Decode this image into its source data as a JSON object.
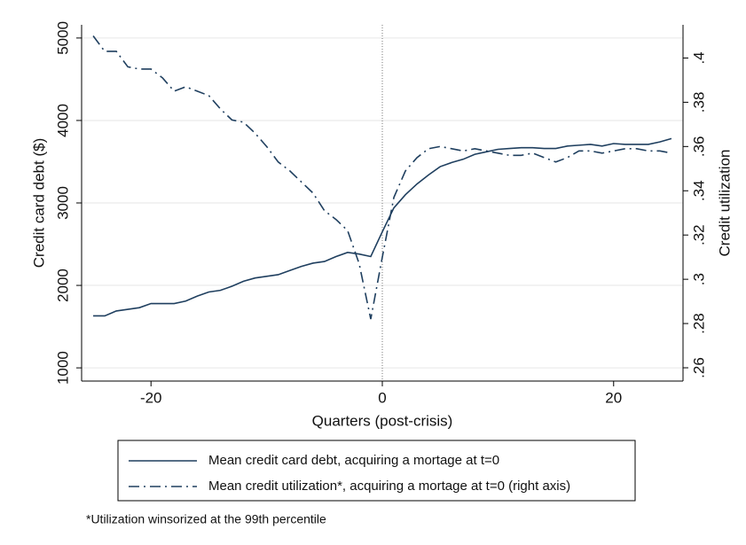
{
  "chart_data": {
    "type": "line",
    "xlabel": "Quarters (post-crisis)",
    "ylabel": "Credit card debt ($)",
    "y2label": "Credit utilization",
    "note": "*Utilization winsorized at the 99th percentile",
    "x": [
      -25,
      -24,
      -23,
      -22,
      -21,
      -20,
      -19,
      -18,
      -17,
      -16,
      -15,
      -14,
      -13,
      -12,
      -11,
      -10,
      -9,
      -8,
      -7,
      -6,
      -5,
      -4,
      -3,
      -2,
      -1,
      0,
      1,
      2,
      3,
      4,
      5,
      6,
      7,
      8,
      9,
      10,
      11,
      12,
      13,
      14,
      15,
      16,
      17,
      18,
      19,
      20,
      21,
      22,
      23,
      24,
      25
    ],
    "series": [
      {
        "name": "Mean credit card debt, acquiring a mortage at t=0",
        "color": "#1f3f5f",
        "dash": "solid",
        "values": [
          1630,
          1630,
          1690,
          1710,
          1730,
          1780,
          1780,
          1780,
          1810,
          1870,
          1920,
          1940,
          1990,
          2050,
          2090,
          2110,
          2130,
          2180,
          2230,
          2270,
          2290,
          2350,
          2400,
          2380,
          2350,
          2650,
          2940,
          3100,
          3230,
          3340,
          3440,
          3490,
          3530,
          3590,
          3620,
          3650,
          3660,
          3670,
          3670,
          3660,
          3660,
          3690,
          3700,
          3710,
          3690,
          3720,
          3710,
          3710,
          3710,
          3740,
          3780
        ]
      },
      {
        "name": "Mean credit utilization*, acquiring a mortage at t=0 (right axis)",
        "color": "#1f3f5f",
        "dash": "dashdot",
        "axis": "y2",
        "values": [
          0.41,
          0.403,
          0.403,
          0.396,
          0.395,
          0.395,
          0.391,
          0.385,
          0.387,
          0.385,
          0.383,
          0.377,
          0.372,
          0.371,
          0.366,
          0.36,
          0.353,
          0.349,
          0.344,
          0.339,
          0.331,
          0.327,
          0.322,
          0.307,
          0.282,
          0.31,
          0.337,
          0.349,
          0.355,
          0.359,
          0.36,
          0.359,
          0.358,
          0.359,
          0.358,
          0.357,
          0.356,
          0.356,
          0.357,
          0.355,
          0.353,
          0.355,
          0.358,
          0.358,
          0.357,
          0.358,
          0.359,
          0.359,
          0.358,
          0.358,
          0.357
        ]
      }
    ],
    "xlim": [
      -26,
      26
    ],
    "xticks": [
      -20,
      0,
      20
    ],
    "ylim": [
      840,
      5160
    ],
    "yticks": [
      1000,
      2000,
      3000,
      4000,
      5000
    ],
    "y2lim": [
      0.254,
      0.415
    ],
    "y2ticks": [
      {
        "value": 0.26,
        "label": ".26"
      },
      {
        "value": 0.28,
        "label": ".28"
      },
      {
        "value": 0.3,
        "label": ".3"
      },
      {
        "value": 0.32,
        "label": ".32"
      },
      {
        "value": 0.34,
        "label": ".34"
      },
      {
        "value": 0.36,
        "label": ".36"
      },
      {
        "value": 0.38,
        "label": ".38"
      },
      {
        "value": 0.4,
        "label": ".4"
      }
    ],
    "grid": true,
    "vline": 0,
    "legend": "bottom"
  }
}
